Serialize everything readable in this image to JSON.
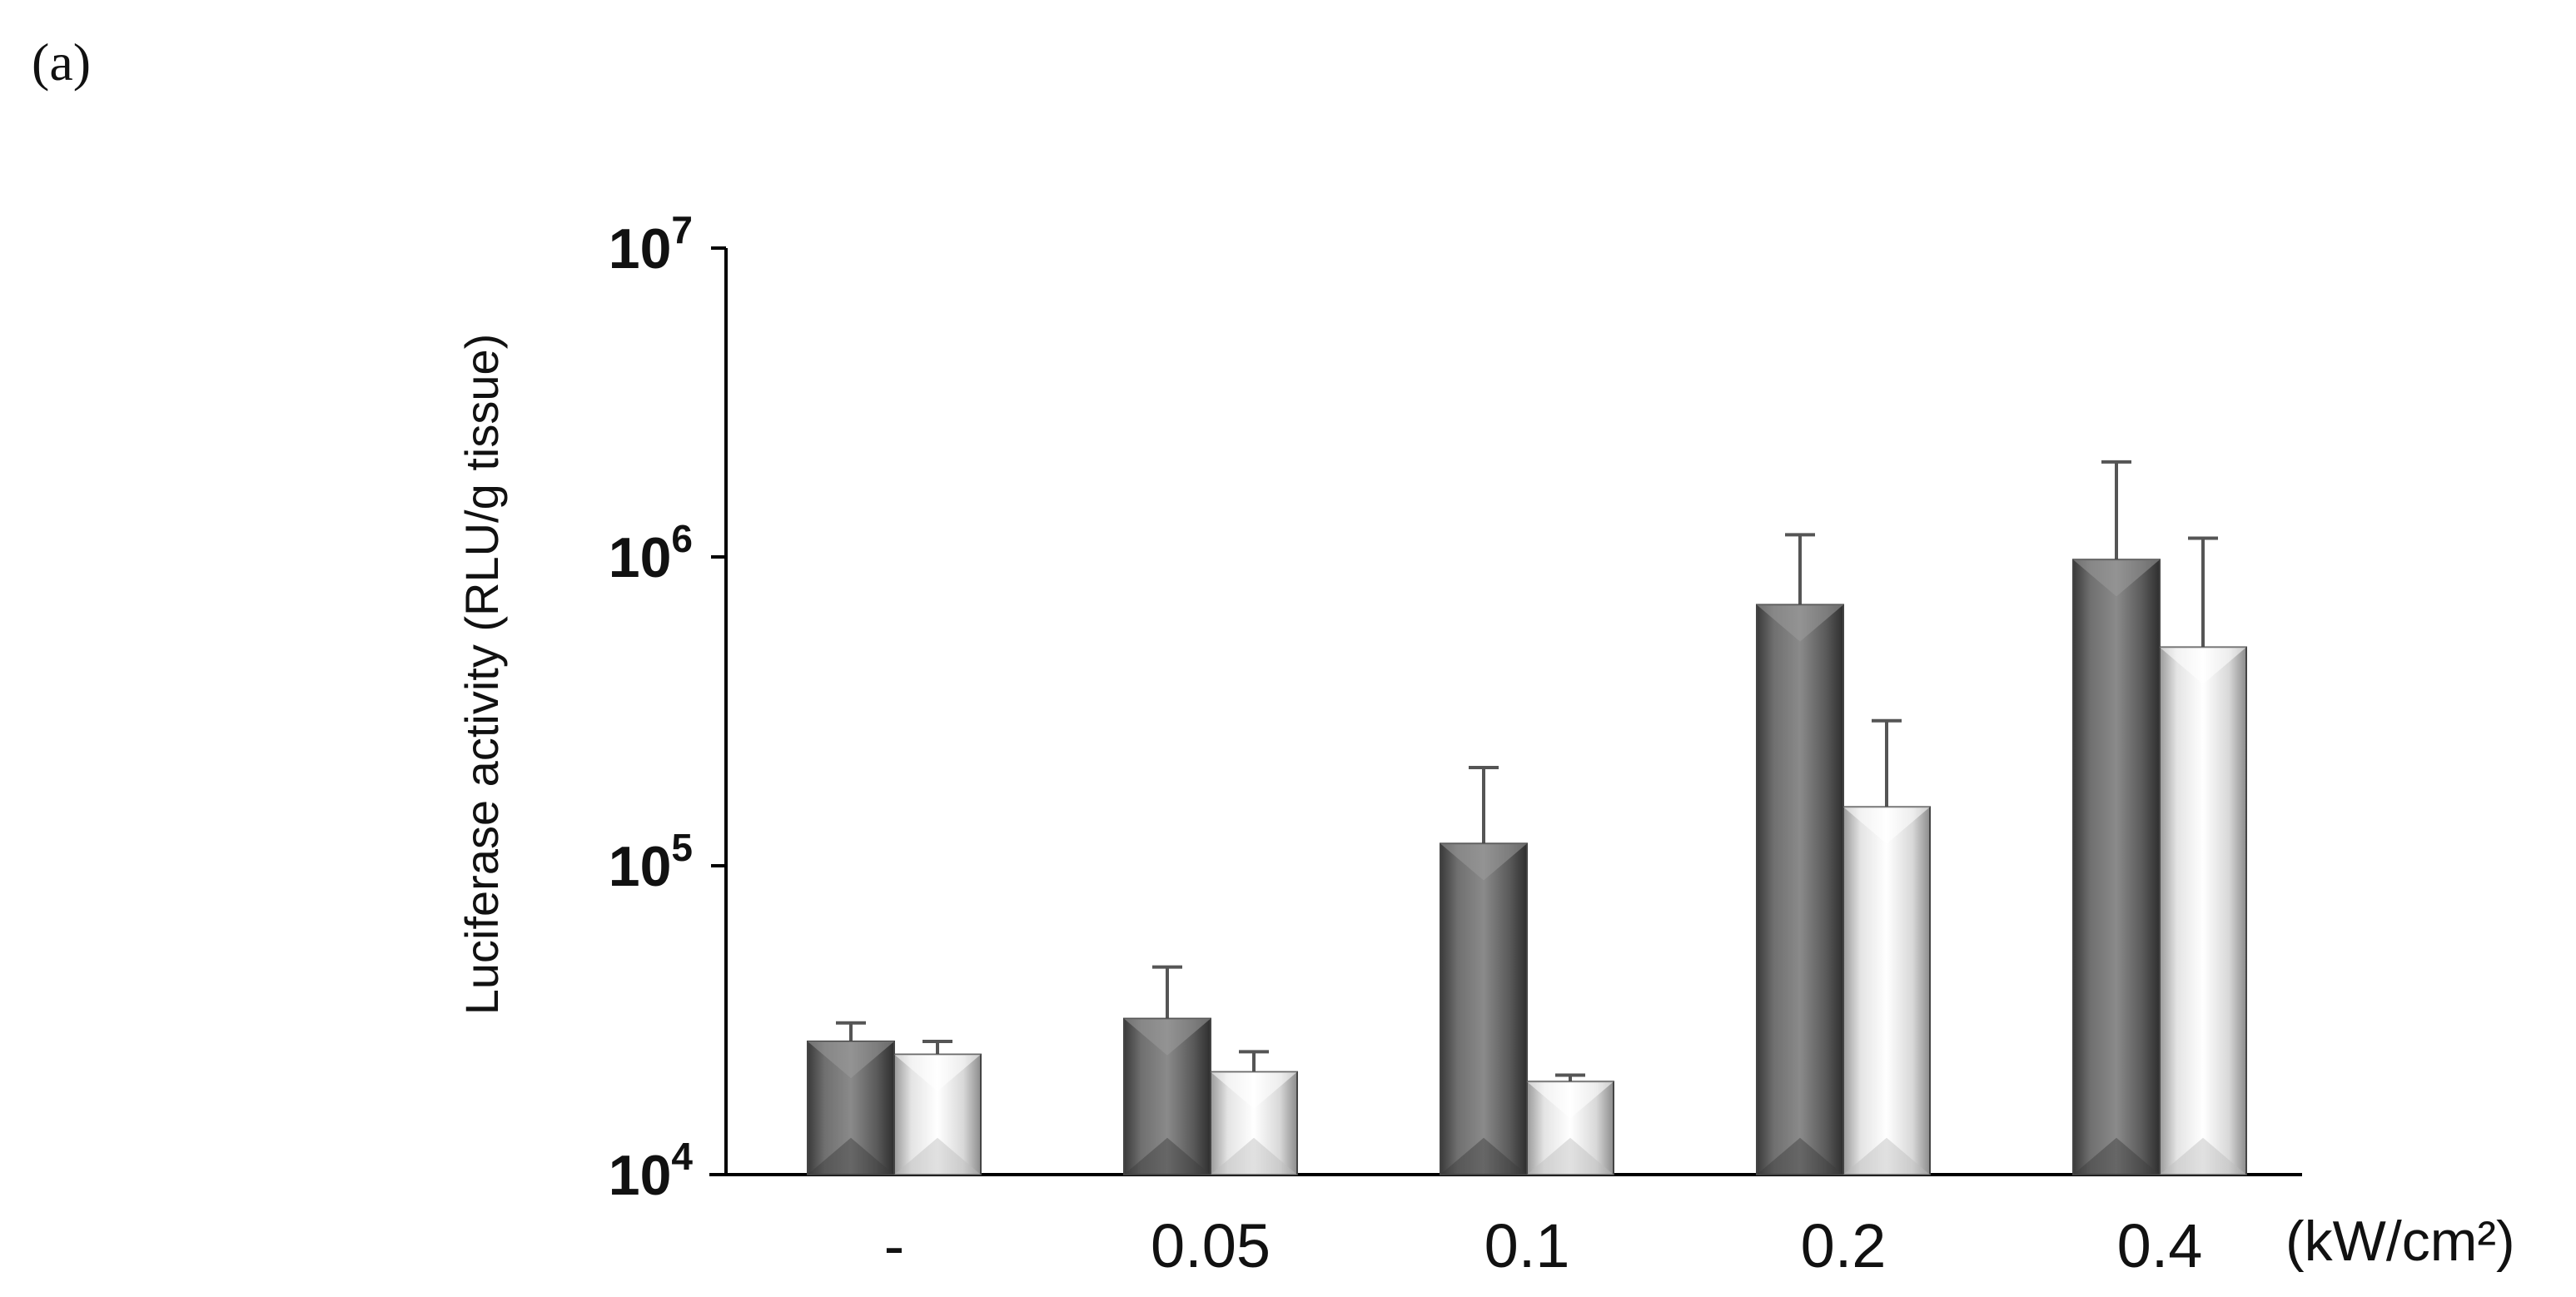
{
  "panel_label": "(a)",
  "colors": {
    "series1": "#555555",
    "series2": "#e8e8e8",
    "axis": "#000000",
    "error_bar": "#555555"
  },
  "chart_data": {
    "type": "bar",
    "title": "",
    "ylabel": "Luciferase activity (RLU/g tissue)",
    "xlabel": "",
    "x_unit_label": "(kW/cm²)",
    "y_scale": "log",
    "ylim": [
      10000,
      10000000
    ],
    "yticks": [
      {
        "base": "10",
        "exp": "4",
        "value": 10000
      },
      {
        "base": "10",
        "exp": "5",
        "value": 100000
      },
      {
        "base": "10",
        "exp": "6",
        "value": 1000000
      },
      {
        "base": "10",
        "exp": "7",
        "value": 10000000
      }
    ],
    "categories": [
      "-",
      "0.05",
      "0.1",
      "0.2",
      "0.4"
    ],
    "series": [
      {
        "values": [
          27000,
          32000,
          118000,
          700000,
          980000
        ],
        "error_upper": [
          31000,
          47000,
          208000,
          1180000,
          2030000
        ]
      },
      {
        "values": [
          24500,
          21500,
          20000,
          155000,
          510000
        ],
        "error_upper": [
          27000,
          25000,
          21000,
          295000,
          1150000
        ]
      }
    ],
    "grid": false,
    "legend": "none"
  }
}
